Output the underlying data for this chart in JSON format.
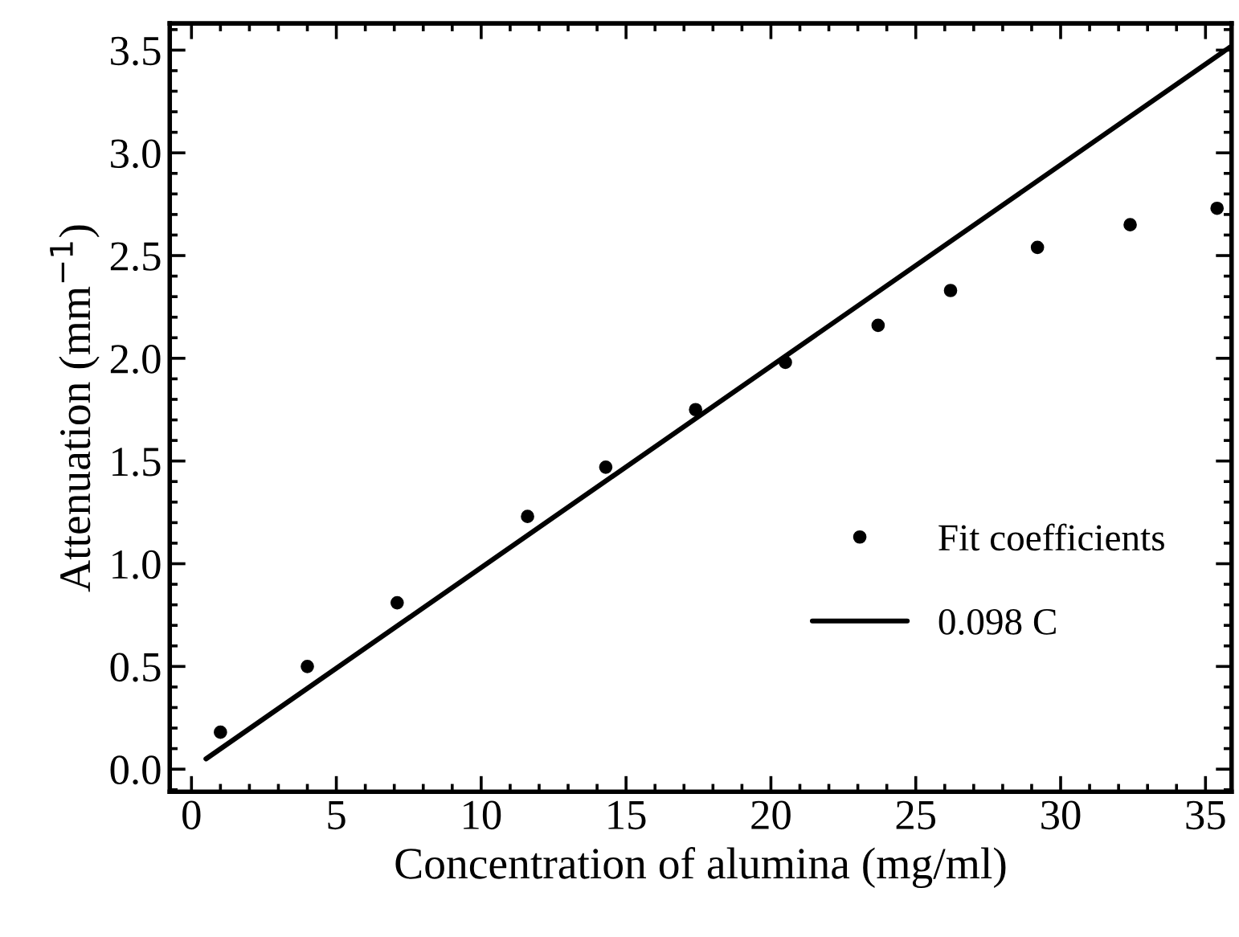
{
  "chart_data": {
    "type": "scatter",
    "xlabel": "Concentration of alumina (mg/ml)",
    "ylabel": "Attenuation (mm$^{−1}$)",
    "xlim": [
      -0.75,
      35.9
    ],
    "ylim": [
      -0.11,
      3.63
    ],
    "xticks": [
      0,
      5,
      10,
      15,
      20,
      25,
      30,
      35
    ],
    "yticks": [
      {
        "value": 0,
        "label": "0.0"
      },
      0.5,
      {
        "value": 1,
        "label": "1.0"
      },
      1.5,
      {
        "value": 2,
        "label": "2.0"
      },
      2.5,
      {
        "value": 3,
        "label": "3.0"
      },
      3.5
    ],
    "grid": false,
    "legend": "bottom right",
    "series": [
      {
        "name": "Fit coefficients",
        "color": "#000000",
        "marker": "circle",
        "x": [
          1.0,
          4.0,
          7.1,
          11.6,
          14.3,
          17.4,
          20.5,
          23.7,
          26.2,
          29.2,
          32.4,
          35.4
        ],
        "values": [
          0.18,
          0.5,
          0.81,
          1.23,
          1.47,
          1.75,
          1.98,
          2.16,
          2.33,
          2.54,
          2.65,
          2.73
        ]
      },
      {
        "name": "0.098 C",
        "type": "line",
        "color": "#000000",
        "line_style": "solid",
        "x": [
          0.5,
          35.9
        ],
        "values": [
          0.05,
          3.52
        ]
      }
    ]
  }
}
